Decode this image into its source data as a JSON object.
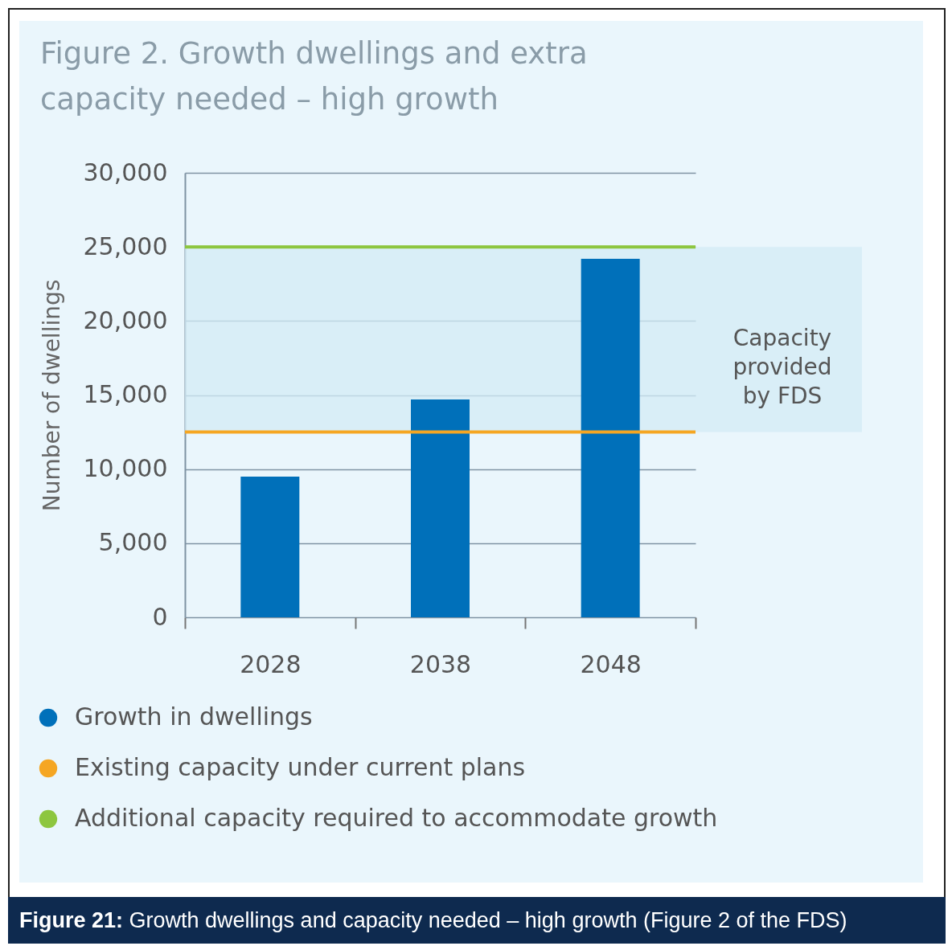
{
  "chart_data": {
    "type": "bar",
    "title": "Figure 2. Growth dwellings and extra capacity needed – high growth",
    "ylabel": "Number of dwellings",
    "categories": [
      "2028",
      "2038",
      "2048"
    ],
    "series": [
      {
        "name": "Growth in dwellings",
        "color": "#0070ba",
        "values": [
          9500,
          14700,
          24200
        ]
      }
    ],
    "ylim": [
      0,
      30000
    ],
    "yticks": [
      {
        "value": 0,
        "label": "0"
      },
      {
        "value": 5000,
        "label": "5,000"
      },
      {
        "value": 10000,
        "label": "10,000"
      },
      {
        "value": 15000,
        "label": "15,000"
      },
      {
        "value": 20000,
        "label": "20,000"
      },
      {
        "value": 25000,
        "label": "25,000"
      },
      {
        "value": 30000,
        "label": "30,000"
      }
    ],
    "ref_lines": [
      {
        "axis": "y",
        "value": 12500,
        "label": "Existing capacity under current plans",
        "color": "#f5a623"
      },
      {
        "axis": "y",
        "value": 25000,
        "label": "Additional capacity required to accommodate growth",
        "color": "#8dc63f"
      }
    ],
    "bands": [
      {
        "axis": "y",
        "from": 12500,
        "to": 25000,
        "label": "Capacity provided by FDS",
        "color": "#d3ebf6"
      }
    ],
    "grid": "y",
    "legend": "bottom",
    "annotations": [
      "Figure 21:  Growth dwellings and capacity needed – high growth (Figure 2 of the FDS)"
    ]
  }
}
